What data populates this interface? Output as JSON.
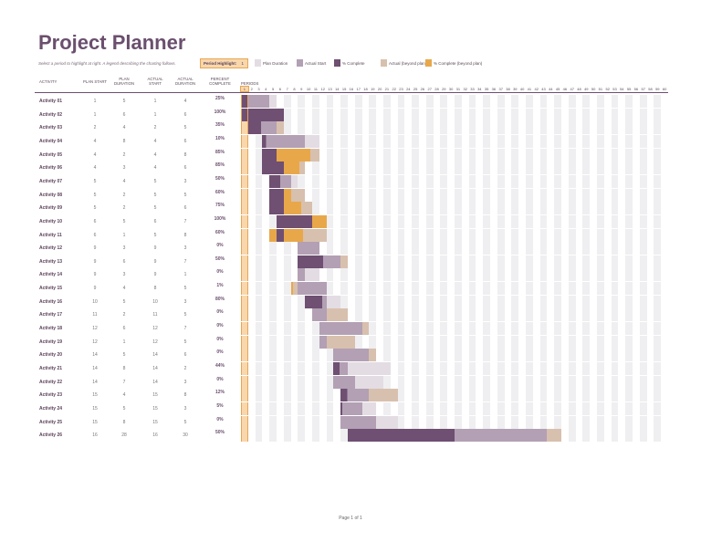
{
  "title": "Project Planner",
  "subtitle": "Select a period to highlight at right.  A legend describing the charting follows.",
  "period_highlight": {
    "label": "Period Highlight:",
    "value": "1"
  },
  "legend": [
    {
      "label": "Plan Duration",
      "color": "#e3dde3"
    },
    {
      "label": "Actual Start",
      "color": "#b3a0b4"
    },
    {
      "label": "% Complete",
      "color": "#6f4f72"
    },
    {
      "label": "Actual (beyond plan)",
      "color": "#d8c0ae"
    },
    {
      "label": "% Complete (beyond plan)",
      "color": "#e8a84a"
    }
  ],
  "columns": {
    "activity": "ACTIVITY",
    "plan_start": "PLAN START",
    "plan_duration": "PLAN DURATION",
    "actual_start": "ACTUAL START",
    "actual_duration": "ACTUAL DURATION",
    "percent_complete": "PERCENT COMPLETE",
    "periods": "PERIODS"
  },
  "period_count": 60,
  "highlight_period": 1,
  "activities": [
    {
      "name": "Activity 01",
      "ps": 1,
      "pd": 5,
      "as": 1,
      "ad": 4,
      "pct": "25%"
    },
    {
      "name": "Activity 02",
      "ps": 1,
      "pd": 6,
      "as": 1,
      "ad": 6,
      "pct": "100%"
    },
    {
      "name": "Activity 03",
      "ps": 2,
      "pd": 4,
      "as": 2,
      "ad": 5,
      "pct": "35%"
    },
    {
      "name": "Activity 04",
      "ps": 4,
      "pd": 8,
      "as": 4,
      "ad": 6,
      "pct": "10%"
    },
    {
      "name": "Activity 05",
      "ps": 4,
      "pd": 2,
      "as": 4,
      "ad": 8,
      "pct": "85%"
    },
    {
      "name": "Activity 06",
      "ps": 4,
      "pd": 3,
      "as": 4,
      "ad": 6,
      "pct": "85%"
    },
    {
      "name": "Activity 07",
      "ps": 5,
      "pd": 4,
      "as": 5,
      "ad": 3,
      "pct": "50%"
    },
    {
      "name": "Activity 08",
      "ps": 5,
      "pd": 2,
      "as": 5,
      "ad": 5,
      "pct": "60%"
    },
    {
      "name": "Activity 09",
      "ps": 5,
      "pd": 2,
      "as": 5,
      "ad": 6,
      "pct": "75%"
    },
    {
      "name": "Activity 10",
      "ps": 6,
      "pd": 5,
      "as": 6,
      "ad": 7,
      "pct": "100%"
    },
    {
      "name": "Activity 11",
      "ps": 6,
      "pd": 1,
      "as": 5,
      "ad": 8,
      "pct": "60%"
    },
    {
      "name": "Activity 12",
      "ps": 9,
      "pd": 3,
      "as": 9,
      "ad": 3,
      "pct": "0%"
    },
    {
      "name": "Activity 13",
      "ps": 9,
      "pd": 6,
      "as": 9,
      "ad": 7,
      "pct": "50%"
    },
    {
      "name": "Activity 14",
      "ps": 9,
      "pd": 3,
      "as": 9,
      "ad": 1,
      "pct": "0%"
    },
    {
      "name": "Activity 15",
      "ps": 9,
      "pd": 4,
      "as": 8,
      "ad": 5,
      "pct": "1%"
    },
    {
      "name": "Activity 16",
      "ps": 10,
      "pd": 5,
      "as": 10,
      "ad": 3,
      "pct": "80%"
    },
    {
      "name": "Activity 17",
      "ps": 11,
      "pd": 2,
      "as": 11,
      "ad": 5,
      "pct": "0%"
    },
    {
      "name": "Activity 18",
      "ps": 12,
      "pd": 6,
      "as": 12,
      "ad": 7,
      "pct": "0%"
    },
    {
      "name": "Activity 19",
      "ps": 12,
      "pd": 1,
      "as": 12,
      "ad": 5,
      "pct": "0%"
    },
    {
      "name": "Activity 20",
      "ps": 14,
      "pd": 5,
      "as": 14,
      "ad": 6,
      "pct": "0%"
    },
    {
      "name": "Activity 21",
      "ps": 14,
      "pd": 8,
      "as": 14,
      "ad": 2,
      "pct": "44%"
    },
    {
      "name": "Activity 22",
      "ps": 14,
      "pd": 7,
      "as": 14,
      "ad": 3,
      "pct": "0%"
    },
    {
      "name": "Activity 23",
      "ps": 15,
      "pd": 4,
      "as": 15,
      "ad": 8,
      "pct": "12%"
    },
    {
      "name": "Activity 24",
      "ps": 15,
      "pd": 5,
      "as": 15,
      "ad": 3,
      "pct": "5%"
    },
    {
      "name": "Activity 25",
      "ps": 15,
      "pd": 8,
      "as": 15,
      "ad": 5,
      "pct": "0%"
    },
    {
      "name": "Activity 26",
      "ps": 16,
      "pd": 28,
      "as": 16,
      "ad": 30,
      "pct": "50%"
    }
  ],
  "footer": "Page 1 of 1"
}
